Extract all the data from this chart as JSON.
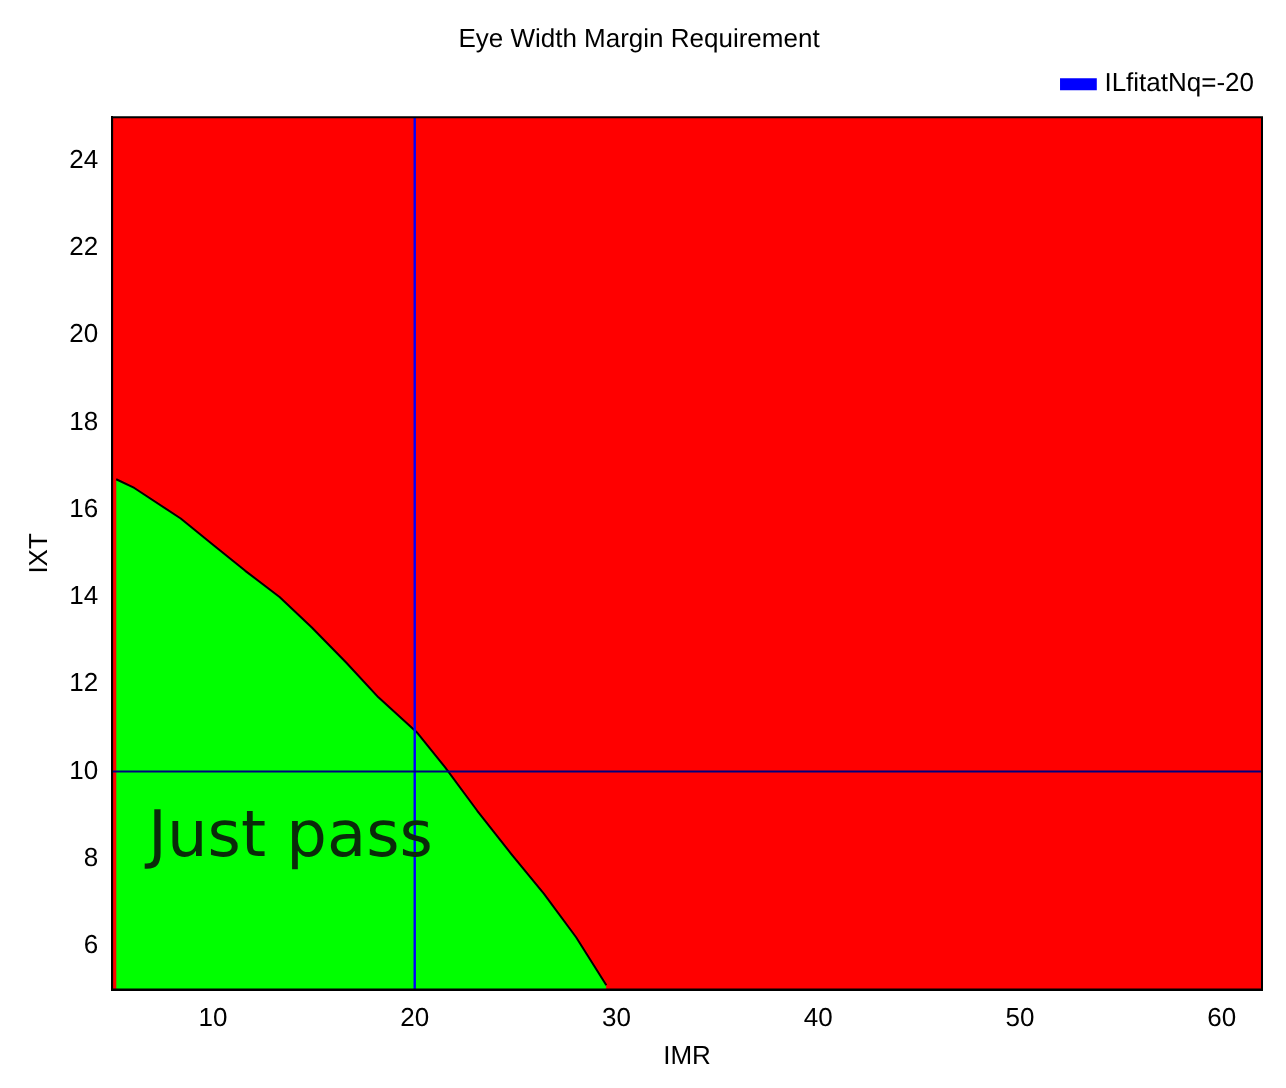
{
  "chart_data": {
    "type": "area",
    "title": "Eye Width Margin Requirement",
    "xlabel": "IMR",
    "ylabel": "IXT",
    "xlim": [
      5,
      62
    ],
    "ylim": [
      5,
      25
    ],
    "xticks": [
      10,
      20,
      30,
      40,
      50,
      60
    ],
    "yticks": [
      6,
      8,
      10,
      12,
      14,
      16,
      18,
      20,
      22,
      24
    ],
    "series": [
      {
        "color": "#00ff00",
        "x": [
          5.2,
          6.1,
          8.4,
          10,
          11.6,
          13.3,
          14.9,
          16.6,
          18.2,
          20.1,
          21.5,
          23.1,
          24.8,
          26.4,
          28,
          29.5
        ],
        "values": [
          16.7,
          16.5,
          15.8,
          15.2,
          14.6,
          14,
          13.3,
          12.5,
          11.7,
          10.9,
          10.1,
          9.1,
          8.1,
          7.2,
          6.2,
          5.1
        ]
      },
      {
        "type": "line",
        "name": "ILfitatNq=-20",
        "color": "#0000ff",
        "x": [
          20,
          20
        ],
        "values": [
          5,
          25
        ]
      }
    ],
    "bands": [
      {
        "axis": "y",
        "from": 5,
        "to": 25,
        "color": "#ff0000"
      }
    ],
    "ref_lines": [
      {
        "axis": "y",
        "value": 10,
        "color": "#000080"
      }
    ],
    "annotations": [
      "Just pass"
    ],
    "legend": "top right",
    "grid": false
  }
}
